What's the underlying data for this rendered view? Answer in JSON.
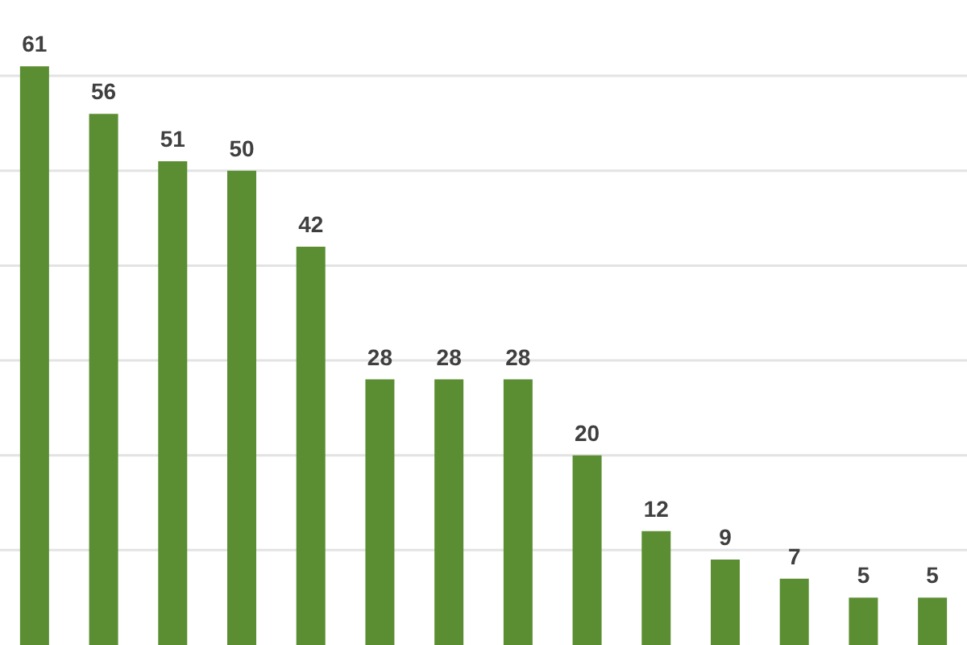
{
  "chart_data": {
    "type": "bar",
    "categories": [
      null,
      null,
      null,
      null,
      null,
      null,
      null,
      null,
      null,
      null,
      null,
      null,
      null,
      null
    ],
    "values": [
      61,
      56,
      51,
      50,
      42,
      28,
      28,
      28,
      20,
      12,
      9,
      7,
      5,
      5
    ],
    "color": "#5b8e32",
    "ylim": [
      0,
      68
    ],
    "yticks": [
      10,
      20,
      30,
      40,
      50,
      60
    ],
    "grid": "y",
    "tick_labels": false,
    "data_labels": true
  }
}
